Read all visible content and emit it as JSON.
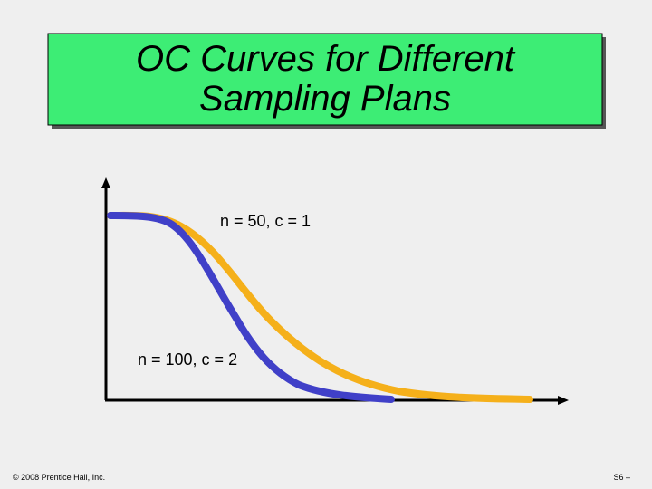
{
  "title": {
    "lines": [
      "OC Curves for Different",
      "Sampling Plans"
    ]
  },
  "curves": [
    {
      "label": "n = 50, c = 1"
    },
    {
      "label": "n = 100, c = 2"
    }
  ],
  "footer": {
    "copyright": "© 2008 Prentice Hall, Inc.",
    "page": "S6 –"
  }
}
